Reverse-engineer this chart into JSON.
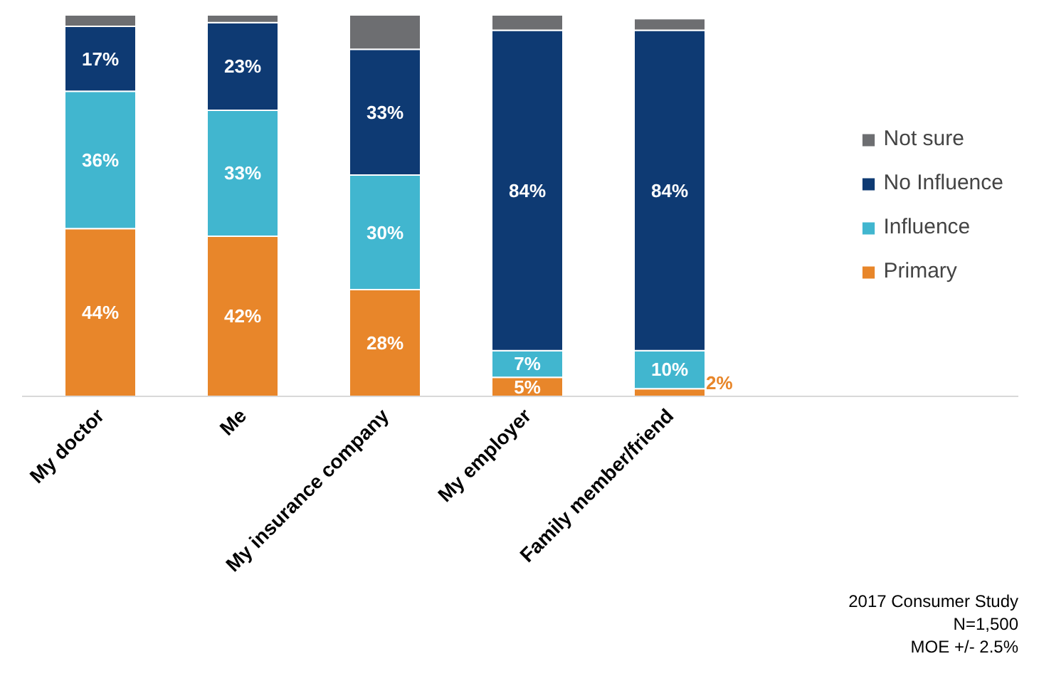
{
  "chart_data": {
    "type": "bar",
    "stacked": true,
    "categories": [
      "My doctor",
      "Me",
      "My insurance company",
      "My employer",
      "Family member/friend"
    ],
    "series": [
      {
        "name": "Primary",
        "color": "#e8862a",
        "values": [
          44,
          42,
          28,
          5,
          2
        ],
        "value_labels": [
          "44%",
          "42%",
          "28%",
          "5%",
          "2%"
        ]
      },
      {
        "name": "Influence",
        "color": "#41b6cf",
        "values": [
          36,
          33,
          30,
          7,
          10
        ],
        "value_labels": [
          "36%",
          "33%",
          "30%",
          "7%",
          "10%"
        ]
      },
      {
        "name": "No Influence",
        "color": "#0e3a73",
        "values": [
          17,
          23,
          33,
          84,
          84
        ],
        "value_labels": [
          "17%",
          "23%",
          "33%",
          "84%",
          "84%"
        ]
      },
      {
        "name": "Not sure",
        "color": "#6d6e71",
        "values": [
          3,
          2,
          9,
          4,
          3
        ],
        "value_labels": [
          null,
          null,
          null,
          null,
          null
        ]
      }
    ],
    "ylim": [
      0,
      100
    ],
    "tick_labels": "x",
    "grid": false,
    "legend": "right",
    "annotations": [
      "2017 Consumer Study",
      "N=1,500",
      "MOE +/- 2.5%"
    ]
  }
}
